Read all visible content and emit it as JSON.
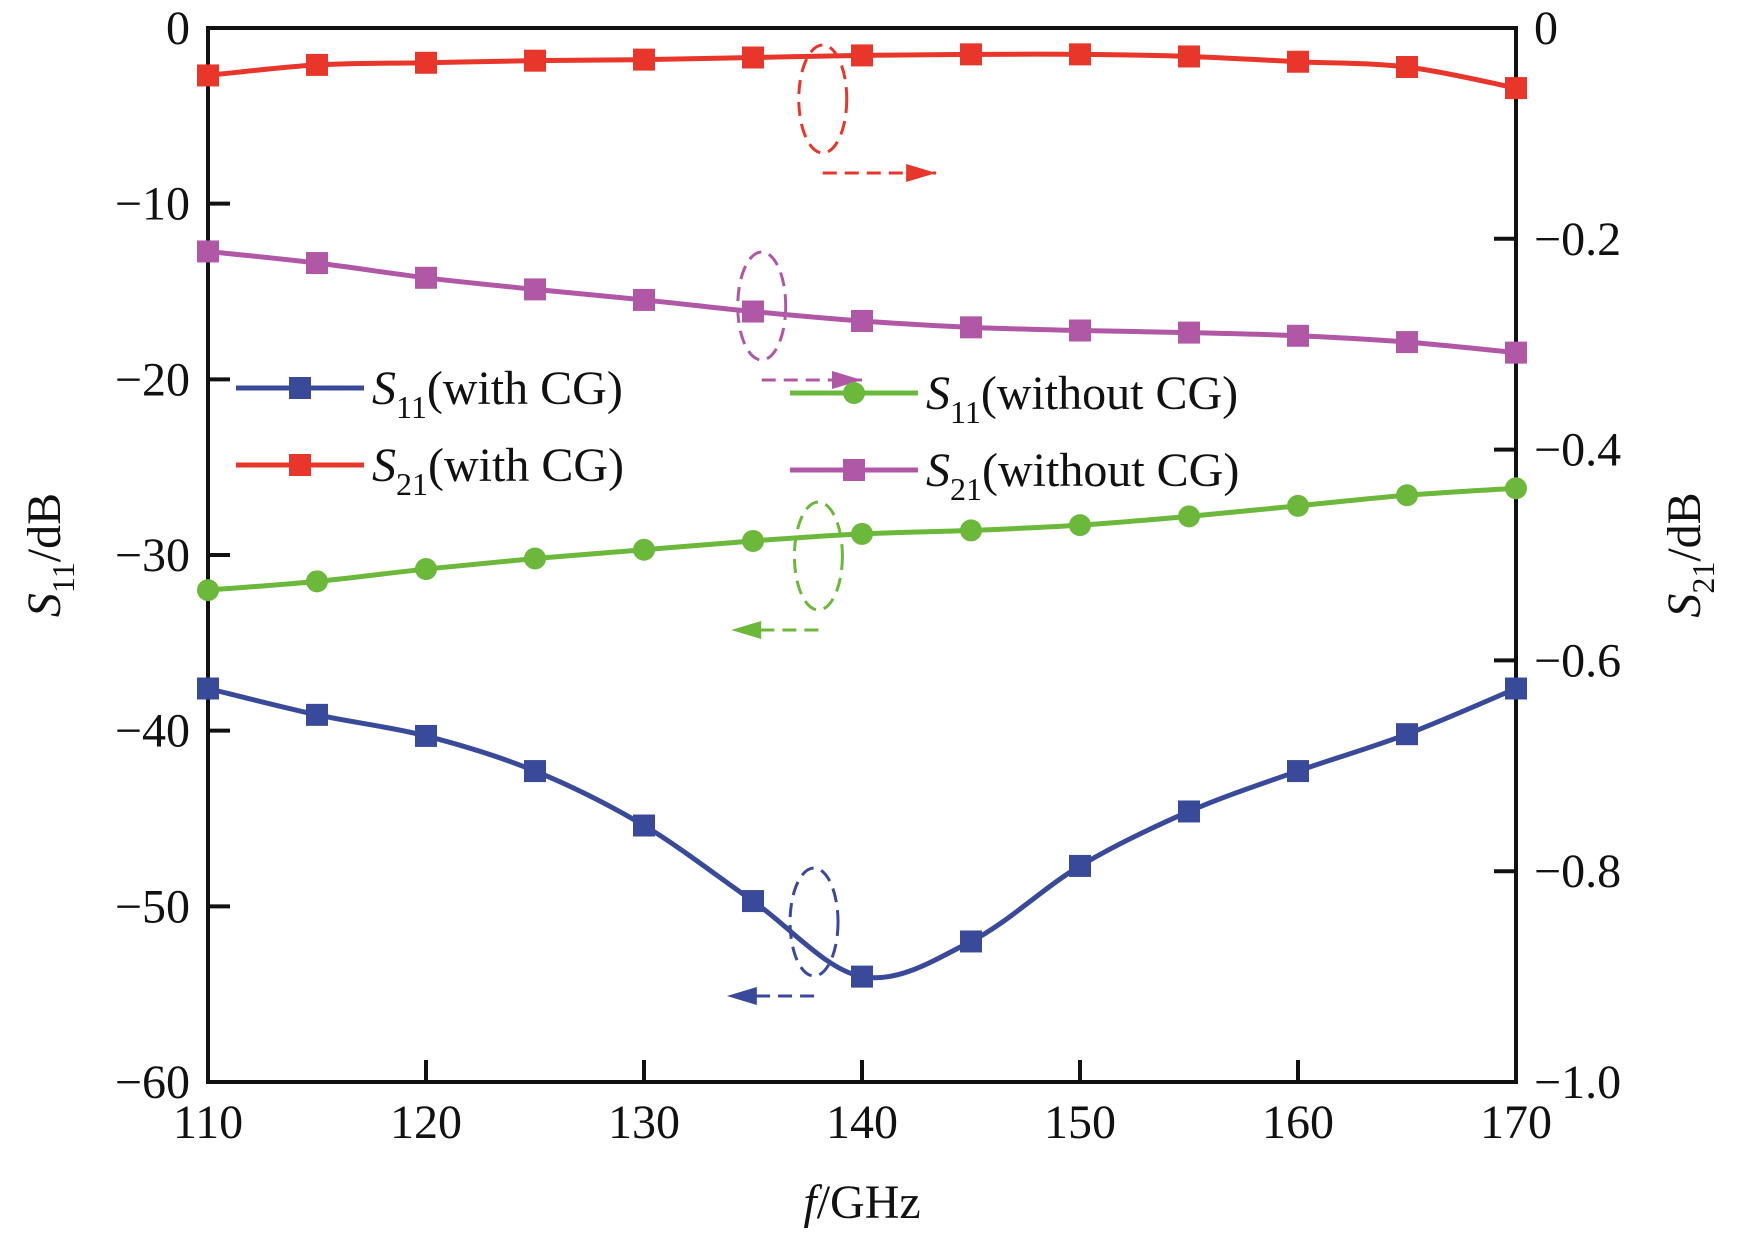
{
  "chart_data": {
    "type": "line",
    "x": [
      110,
      115,
      120,
      125,
      130,
      135,
      140,
      145,
      150,
      155,
      160,
      165,
      170
    ],
    "xlim": [
      110,
      170
    ],
    "xticks": [
      110,
      120,
      130,
      140,
      150,
      160,
      170
    ],
    "xlabel": {
      "italic": "f",
      "rest": "/GHz"
    },
    "left_axis": {
      "label": {
        "italic": "S",
        "sub": "11",
        "rest": "/dB"
      },
      "lim": [
        -60,
        0
      ],
      "ticks": [
        0,
        -10,
        -20,
        -30,
        -40,
        -50,
        -60
      ],
      "tick_labels": [
        "0",
        "−10",
        "−20",
        "−30",
        "−40",
        "−50",
        "−60"
      ]
    },
    "right_axis": {
      "label": {
        "italic": "S",
        "sub": "21",
        "rest": "/dB"
      },
      "lim": [
        -1.0,
        0
      ],
      "ticks": [
        0,
        -0.2,
        -0.4,
        -0.6,
        -0.8,
        -1.0
      ],
      "tick_labels": [
        "0",
        "−0.2",
        "−0.4",
        "−0.6",
        "−0.8",
        "−1.0"
      ]
    },
    "series": [
      {
        "name": "S11(with CG)",
        "label": {
          "italic": "S",
          "sub": "11",
          "rest": "(with CG)"
        },
        "axis": "left",
        "color": "#3a4a9a",
        "marker": "square",
        "values": [
          -37.6,
          -39.1,
          -40.3,
          -42.3,
          -45.4,
          -49.7,
          -54.0,
          -52.0,
          -47.7,
          -44.6,
          -42.3,
          -40.2,
          -37.6
        ]
      },
      {
        "name": "S21(with CG)",
        "label": {
          "italic": "S",
          "sub": "21",
          "rest": "(with CG)"
        },
        "axis": "right",
        "color": "#e8362b",
        "marker": "square",
        "values": [
          -0.045,
          -0.035,
          -0.033,
          -0.031,
          -0.03,
          -0.028,
          -0.026,
          -0.025,
          -0.025,
          -0.027,
          -0.032,
          -0.037,
          -0.057
        ]
      },
      {
        "name": "S11(without CG)",
        "label": {
          "italic": "S",
          "sub": "11",
          "rest": "(without  CG)"
        },
        "axis": "left",
        "color": "#6bb83b",
        "marker": "circle",
        "values": [
          -32.0,
          -31.5,
          -30.8,
          -30.2,
          -29.7,
          -29.2,
          -28.8,
          -28.6,
          -28.3,
          -27.8,
          -27.2,
          -26.6,
          -26.2
        ]
      },
      {
        "name": "S21(without CG)",
        "label": {
          "italic": "S",
          "sub": "21",
          "rest": "(without  CG)"
        },
        "axis": "right",
        "color": "#b057a6",
        "marker": "square",
        "values": [
          -0.212,
          -0.223,
          -0.237,
          -0.248,
          -0.258,
          -0.269,
          -0.278,
          -0.284,
          -0.287,
          -0.289,
          -0.292,
          -0.298,
          -0.308
        ]
      }
    ],
    "legend_position": "center-left",
    "grid": false
  }
}
